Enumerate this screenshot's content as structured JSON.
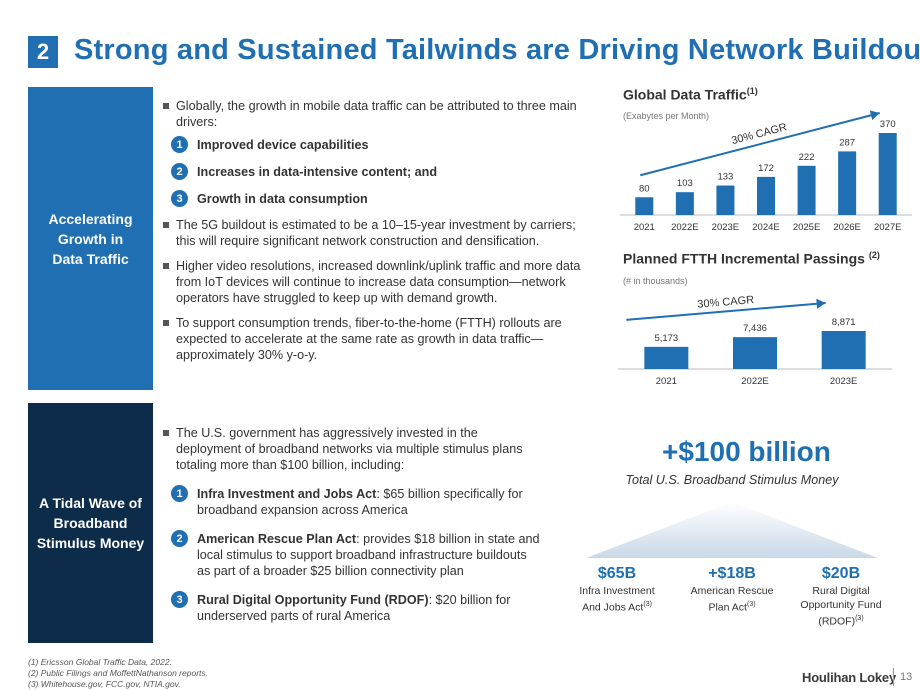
{
  "header": {
    "section_number": "2",
    "title": "Strong and Sustained Tailwinds are Driving Network Buildout"
  },
  "sections": {
    "top_label": "Accelerating Growth in Data Traffic",
    "bottom_label": "A Tidal Wave of Broadband Stimulus Money"
  },
  "top_text": {
    "bullet1": "Globally, the growth in mobile data traffic can be attributed to three main drivers:",
    "drivers": [
      {
        "num": "1",
        "text": "Improved device capabilities"
      },
      {
        "num": "2",
        "text": "Increases in data-intensive content; and"
      },
      {
        "num": "3",
        "text": "Growth in data consumption"
      }
    ],
    "bullet2": "The 5G buildout is estimated to be a 10–15-year investment by carriers; this will require significant network construction and densification.",
    "bullet3": "Higher video resolutions, increased downlink/uplink traffic and more data from IoT devices will continue to increase data consumption—network operators have struggled to keep up with demand growth.",
    "bullet4": "To support consumption trends, fiber-to-the-home (FTTH) rollouts are expected to accelerate at the same rate as growth in data traffic—approximately 30% y-o-y."
  },
  "bottom_text": {
    "bullet1": "The U.S. government has aggressively invested in the deployment of broadband networks via multiple stimulus plans totaling more than $100 billion, including:",
    "items": [
      {
        "num": "1",
        "name": "Infra Investment and Jobs Act",
        "desc": ": $65 billion specifically for broadband expansion across America"
      },
      {
        "num": "2",
        "name": "American Rescue Plan Act",
        "desc": ": provides $18 billion in state and local stimulus to support broadband infrastructure buildouts as part of a broader $25 billion connectivity plan"
      },
      {
        "num": "3",
        "name": "Rural Digital Opportunity Fund (RDOF)",
        "desc": ": $20 billion for underserved parts of rural America"
      }
    ]
  },
  "chart_data": [
    {
      "type": "bar",
      "title": "Global Data Traffic",
      "title_note": "(1)",
      "subtitle": "(Exabytes per Month)",
      "annotation": "30% CAGR",
      "categories": [
        "2021",
        "2022E",
        "2023E",
        "2024E",
        "2025E",
        "2026E",
        "2027E"
      ],
      "values": [
        80,
        103,
        133,
        172,
        222,
        287,
        370
      ],
      "value_labels": [
        "80",
        "103",
        "133",
        "172",
        "222",
        "287",
        "370"
      ],
      "ylim": [
        0,
        370
      ],
      "color": "#1f6fb2"
    },
    {
      "type": "bar",
      "title": "Planned FTTH Incremental Passings",
      "title_note": "(2)",
      "subtitle": "(# in thousands)",
      "annotation": "30% CAGR",
      "categories": [
        "2021",
        "2022E",
        "2023E"
      ],
      "values": [
        5173,
        7436,
        8871
      ],
      "value_labels": [
        "5,173",
        "7,436",
        "8,871"
      ],
      "ylim": [
        0,
        8871
      ],
      "color": "#1f6fb2"
    }
  ],
  "stimulus": {
    "headline": "+$100 billion",
    "subtitle": "Total U.S. Broadband Stimulus Money",
    "items": [
      {
        "amount": "$65B",
        "line1": "Infra Investment",
        "line2": "And Jobs Act",
        "line3": "",
        "note": "(3)"
      },
      {
        "amount": "+$18B",
        "line1": "American Rescue",
        "line2": "Plan Act",
        "line3": "",
        "note": "(3)"
      },
      {
        "amount": "$20B",
        "line1": "Rural Digital",
        "line2": "Opportunity Fund",
        "line3": "(RDOF)",
        "note": "(3)"
      }
    ]
  },
  "footnotes": [
    "(1)   Ericsson Global Traffic Data, 2022.",
    "(2)   Public Filings and MoffettNathanson reports.",
    "(3)   Whitehouse.gov, FCC.gov, NTIA.gov."
  ],
  "footer": {
    "logo": "Houlihan Lokey",
    "page_number": "13"
  },
  "colors": {
    "primary": "#1f6fb2",
    "navy": "#0d2c4a"
  }
}
